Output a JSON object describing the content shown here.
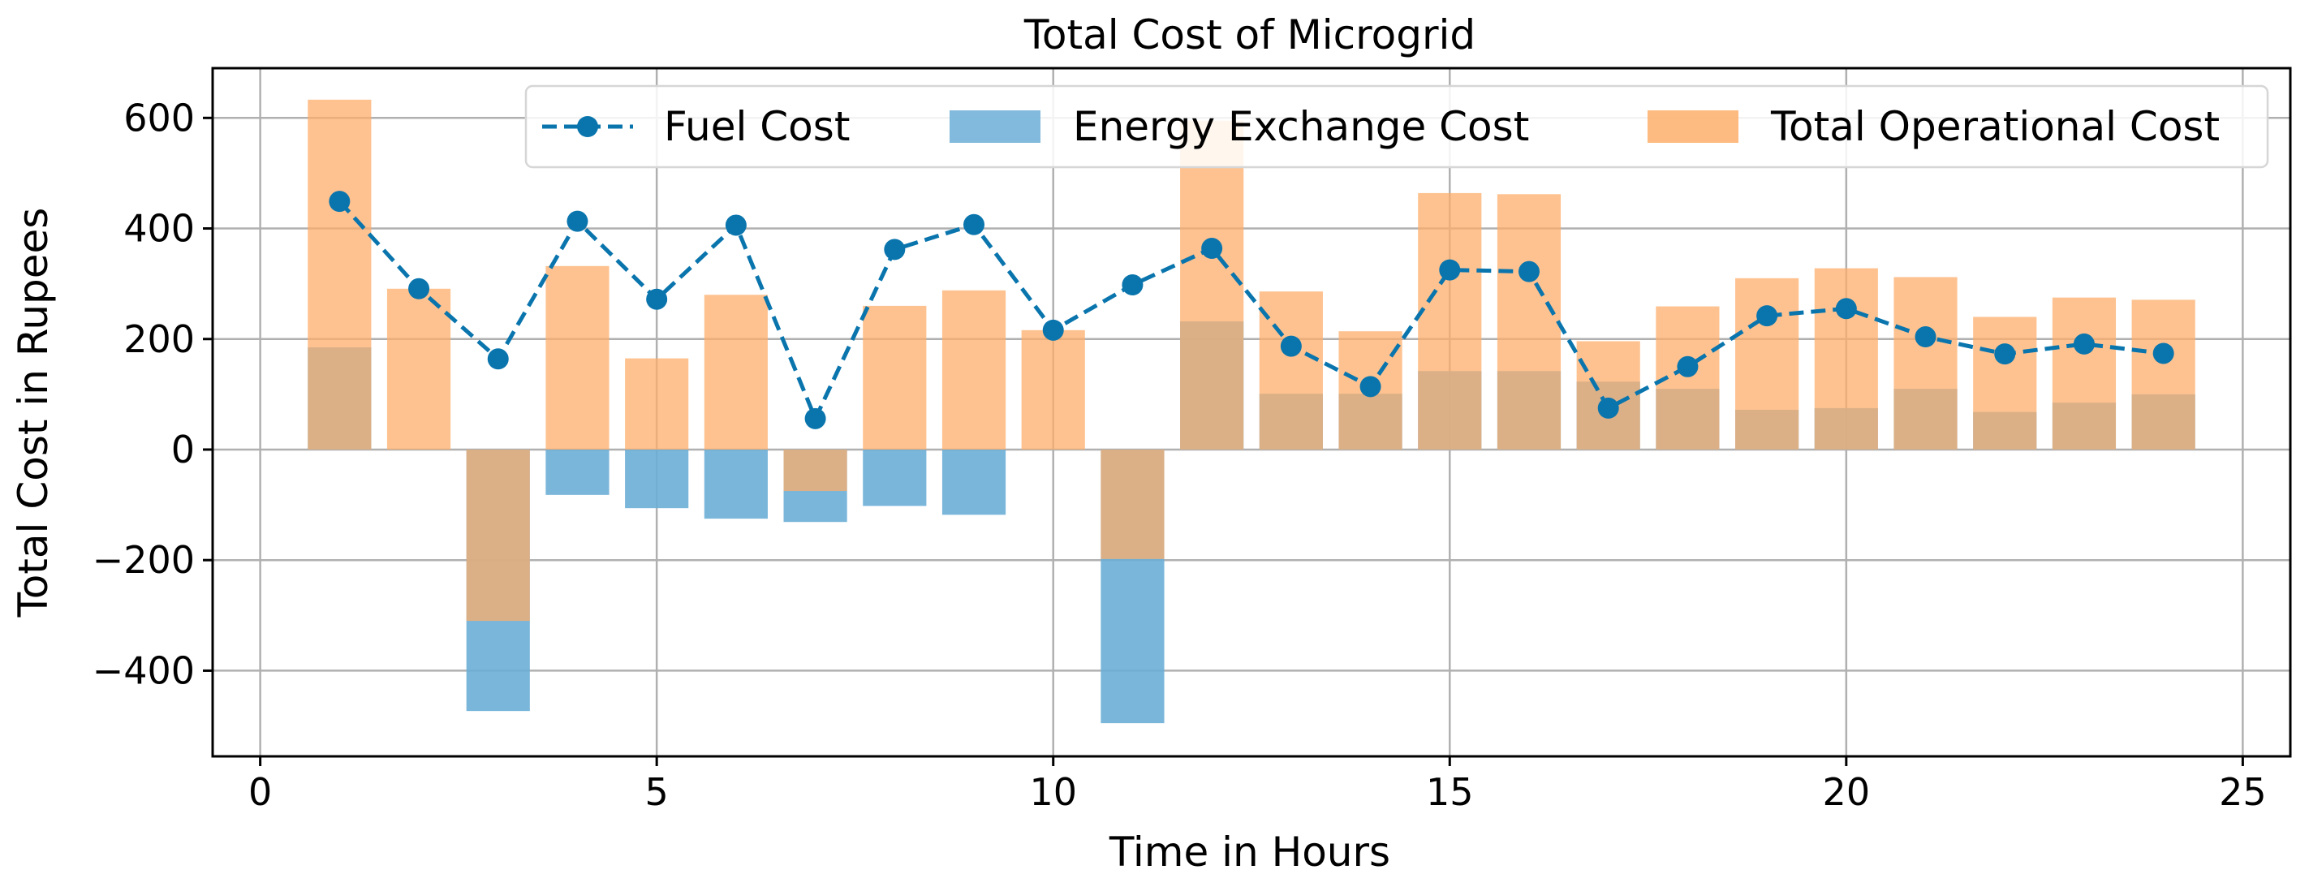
{
  "chart_data": {
    "type": "bar",
    "title": "Total Cost of Microgrid",
    "xlabel": "Time in Hours",
    "ylabel": "Total Cost in Rupees",
    "xlim": [
      -0.6,
      25.6
    ],
    "ylim": [
      -555,
      690
    ],
    "xticks": [
      0,
      5,
      10,
      15,
      20,
      25
    ],
    "yticks": [
      -400,
      -200,
      0,
      200,
      400,
      600
    ],
    "ytick_labels": [
      "−400",
      "−200",
      "0",
      "200",
      "400",
      "600"
    ],
    "grid": true,
    "legend_position": "top-right",
    "x": [
      1,
      2,
      3,
      4,
      5,
      6,
      7,
      8,
      9,
      10,
      11,
      12,
      13,
      14,
      15,
      16,
      17,
      18,
      19,
      20,
      21,
      22,
      23,
      24
    ],
    "series": [
      {
        "name": "Energy Exchange Cost",
        "kind": "bar",
        "color": "#6baed6",
        "values": [
          185,
          0,
          -473,
          -82,
          -106,
          -125,
          -131,
          -102,
          -118,
          0,
          -495,
          232,
          101,
          101,
          142,
          142,
          123,
          110,
          72,
          75,
          110,
          68,
          85,
          100
        ]
      },
      {
        "name": "Total Operational Cost",
        "kind": "bar",
        "color": "#fdae6b",
        "values": [
          633,
          291,
          -310,
          332,
          165,
          280,
          -75,
          260,
          288,
          216,
          -198,
          595,
          286,
          214,
          464,
          462,
          196,
          259,
          310,
          328,
          312,
          240,
          275,
          271
        ]
      },
      {
        "name": "Fuel Cost",
        "kind": "line",
        "color": "#0a75ad",
        "style": "dashed",
        "marker": "circle",
        "values": [
          449,
          291,
          164,
          413,
          272,
          406,
          56,
          362,
          407,
          216,
          298,
          364,
          187,
          114,
          325,
          322,
          75,
          150,
          242,
          255,
          204,
          173,
          191,
          174
        ]
      }
    ],
    "legend": [
      "Fuel Cost",
      "Energy Exchange Cost",
      "Total Operational Cost"
    ]
  }
}
